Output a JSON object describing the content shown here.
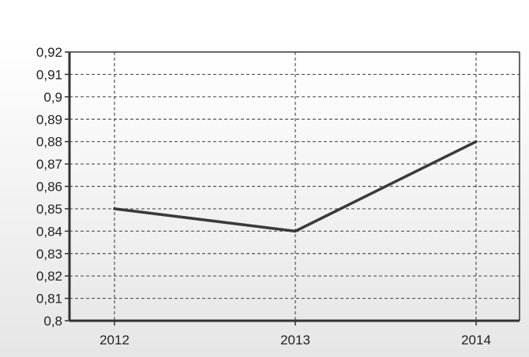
{
  "chart_data": {
    "type": "line",
    "x": [
      "2012",
      "2013",
      "2014"
    ],
    "series": [
      {
        "values": [
          0.85,
          0.84,
          0.88
        ]
      }
    ],
    "yticks": [
      "0,92",
      "0,91",
      "0,9",
      "0,89",
      "0,88",
      "0,87",
      "0,86",
      "0,85",
      "0,84",
      "0,83",
      "0,82",
      "0,81",
      "0,8"
    ],
    "ylim": [
      0.8,
      0.92
    ],
    "grid": true,
    "title": "",
    "xlabel": "",
    "ylabel": ""
  },
  "colors": {
    "line": "#3a3a3a",
    "grid": "#555555",
    "axis": "#333333",
    "plot_bg_top": "#ffffff",
    "plot_bg_bottom": "#e8e8e8"
  }
}
